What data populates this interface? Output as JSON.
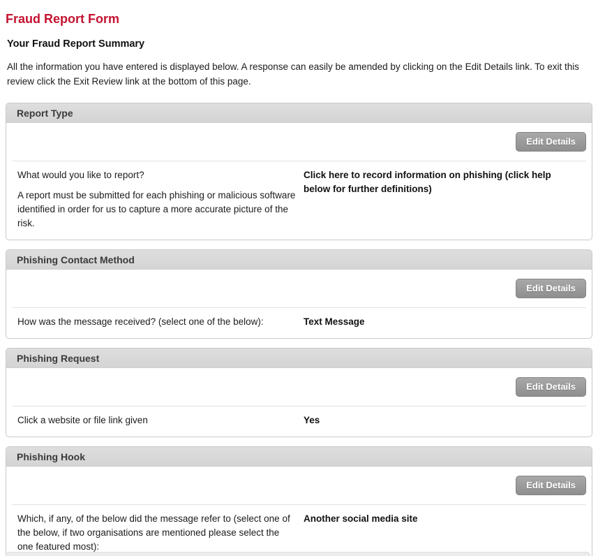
{
  "page": {
    "title": "Fraud Report Form",
    "summary_heading": "Your Fraud Report Summary",
    "intro": "All the information you have entered is displayed below. A response can easily be amended by clicking on the Edit Details link. To exit this review click the Exit Review link at the bottom of this page."
  },
  "buttons": {
    "edit_details": "Edit Details"
  },
  "sections": [
    {
      "title": "Report Type",
      "question": "What would you like to report?",
      "question_note": "A report must be submitted for each phishing or malicious software identified in order for us to capture a more accurate picture of the risk.",
      "answer": "Click here to record information on phishing (click help below for further definitions)"
    },
    {
      "title": "Phishing Contact Method",
      "question": "How was the message received? (select one of the below):",
      "answer": "Text Message"
    },
    {
      "title": "Phishing Request",
      "question": "Click a website or file link given",
      "answer": "Yes"
    },
    {
      "title": "Phishing Hook",
      "question": "Which, if any, of the below did the message refer to (select one of the below, if two organisations are mentioned please select the one featured most):",
      "answer": "Another social media site"
    }
  ],
  "colors": {
    "title_red": "#c41230",
    "section_header_bg": "#d8d8d8",
    "section_header_text": "#3a3a3a",
    "button_bg": "#999999",
    "button_text": "#ffffff",
    "section_border": "#c9c9c9"
  }
}
